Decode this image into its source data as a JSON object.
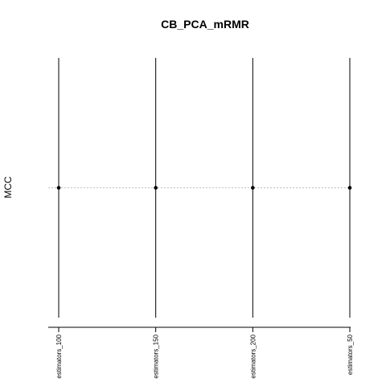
{
  "chart_data": {
    "type": "scatter",
    "title": "CB_PCA_mRMR",
    "xlabel": "",
    "ylabel": "MCC",
    "categories": [
      "estimators_100",
      "estimators_150",
      "estimators_200",
      "estimators_50"
    ],
    "series": [
      {
        "values": [
          0,
          0,
          0,
          0
        ]
      }
    ],
    "ylim": [
      -1,
      1
    ],
    "reference_line": {
      "y": 0,
      "style": "dashed"
    },
    "grid": false,
    "legend": "none",
    "colors": {
      "points": "#000000",
      "lines": "#000000",
      "reference": "#aaaaaa"
    }
  }
}
